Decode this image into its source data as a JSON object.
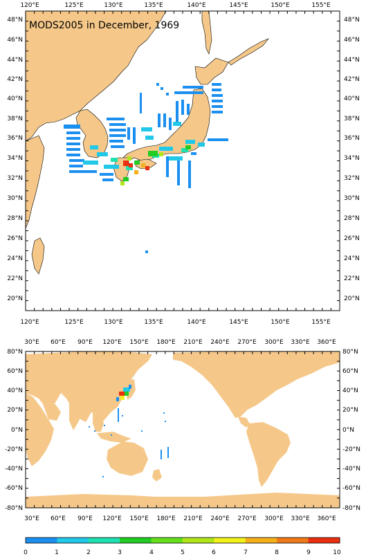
{
  "map1": {
    "title": "MODS2005 in December, 1969",
    "lon_labels": [
      "120°E",
      "125°E",
      "130°E",
      "135°E",
      "140°E",
      "145°E",
      "150°E",
      "155°E"
    ],
    "lat_labels": [
      "48°N",
      "46°N",
      "44°N",
      "42°N",
      "40°N",
      "38°N",
      "36°N",
      "34°N",
      "32°N",
      "30°N",
      "28°N",
      "26°N",
      "24°N",
      "22°N",
      "20°N"
    ]
  },
  "map2": {
    "lon_labels": [
      "30°E",
      "60°E",
      "90°E",
      "120°E",
      "150°E",
      "180°E",
      "210°E",
      "240°E",
      "270°E",
      "300°E",
      "330°E",
      "360°E"
    ],
    "lat_labels": [
      "80°N",
      "60°N",
      "40°N",
      "20°N",
      "0°N",
      "-20°N",
      "-40°N",
      "-60°N",
      "-80°N"
    ]
  },
  "colorbar": {
    "labels": [
      "0",
      "1",
      "2",
      "3",
      "4",
      "5",
      "6",
      "7",
      "8",
      "9",
      "10"
    ],
    "colors": [
      "#1f5fe0",
      "#1a8ff0",
      "#22c8e8",
      "#1ee0b0",
      "#22cc22",
      "#66e01a",
      "#b0e61a",
      "#f2f21a",
      "#f5b01a",
      "#f07a1a",
      "#e83010"
    ]
  },
  "colors": {
    "land": "#f5c88a",
    "ocean": "#ffffff"
  }
}
